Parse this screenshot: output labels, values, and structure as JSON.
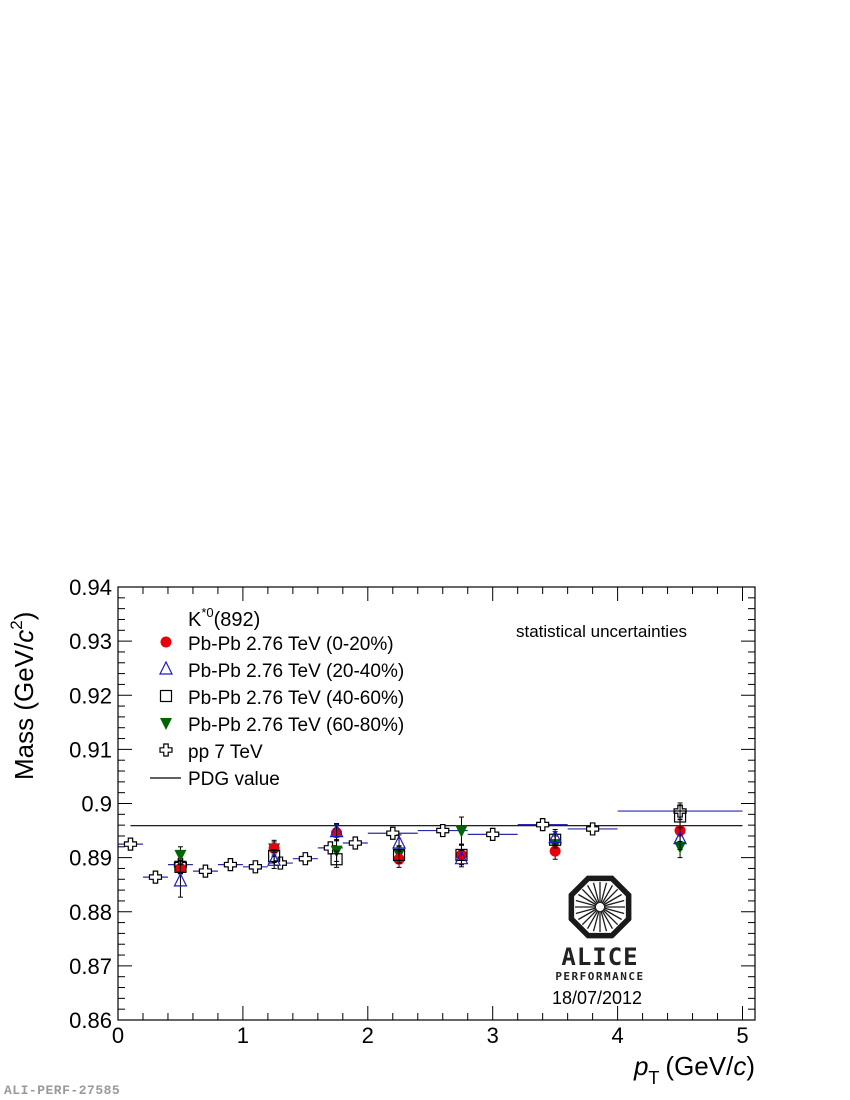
{
  "chart_data": {
    "type": "scatter",
    "title": "K*0(892)",
    "title_main": "K",
    "title_sup": "*0",
    "title_rest": "(892)",
    "annotation": "statistical uncertainties",
    "xlabel_var": "p",
    "xlabel_sub": "T",
    "xlabel_unit_open": "(GeV/",
    "xlabel_unit_c": "c",
    "xlabel_unit_close": ")",
    "ylabel_pre": "Mass (GeV/",
    "ylabel_c": "c",
    "ylabel_sup": "2",
    "ylabel_post": ")",
    "xlim": [
      0,
      5.1
    ],
    "ylim": [
      0.86,
      0.94
    ],
    "xticks": [
      0,
      1,
      2,
      3,
      4,
      5
    ],
    "xtick_labels": [
      "0",
      "1",
      "2",
      "3",
      "4",
      "5"
    ],
    "yticks": [
      0.86,
      0.87,
      0.88,
      0.89,
      0.9,
      0.91,
      0.92,
      0.93,
      0.94
    ],
    "ytick_labels": [
      "0.86",
      "0.87",
      "0.88",
      "0.89",
      "0.9",
      "0.91",
      "0.92",
      "0.93",
      "0.94"
    ],
    "pdg_value": 0.8959,
    "legend_position": "top-left",
    "series": [
      {
        "name": "Pb-Pb 2.76 TeV (0-20%)",
        "marker": "circle",
        "color": "#e8000b",
        "points": [
          {
            "x": 0.5,
            "y": 0.888,
            "err": 0.001
          },
          {
            "x": 1.25,
            "y": 0.8917,
            "err": 0.0012
          },
          {
            "x": 1.75,
            "y": 0.8946,
            "err": 0.0015
          },
          {
            "x": 2.25,
            "y": 0.8897,
            "err": 0.0015
          },
          {
            "x": 2.75,
            "y": 0.8905,
            "err": 0.0018
          },
          {
            "x": 3.5,
            "y": 0.8912,
            "err": 0.0015
          },
          {
            "x": 4.5,
            "y": 0.895,
            "err": 0.002
          }
        ]
      },
      {
        "name": "Pb-Pb 2.76 TeV (20-40%)",
        "marker": "triangle-up-open",
        "color": "#1a1acc",
        "points": [
          {
            "x": 0.5,
            "y": 0.8857,
            "err": 0.003
          },
          {
            "x": 1.25,
            "y": 0.8895,
            "err": 0.0015
          },
          {
            "x": 1.75,
            "y": 0.8948,
            "err": 0.0015
          },
          {
            "x": 2.25,
            "y": 0.8927,
            "err": 0.0015
          },
          {
            "x": 2.75,
            "y": 0.8898,
            "err": 0.0015
          },
          {
            "x": 3.5,
            "y": 0.8937,
            "err": 0.0015
          },
          {
            "x": 4.5,
            "y": 0.8935,
            "err": 0.002
          }
        ]
      },
      {
        "name": "Pb-Pb 2.76 TeV (40-60%)",
        "marker": "square-open",
        "color": "#000000",
        "points": [
          {
            "x": 0.5,
            "y": 0.8883,
            "err": 0.0012
          },
          {
            "x": 1.25,
            "y": 0.8903,
            "err": 0.0012
          },
          {
            "x": 1.75,
            "y": 0.8897,
            "err": 0.0015
          },
          {
            "x": 2.25,
            "y": 0.8905,
            "err": 0.0015
          },
          {
            "x": 2.75,
            "y": 0.8905,
            "err": 0.0018
          },
          {
            "x": 3.5,
            "y": 0.8933,
            "err": 0.0015
          },
          {
            "x": 4.5,
            "y": 0.8976,
            "err": 0.002
          }
        ]
      },
      {
        "name": "Pb-Pb 2.76 TeV (60-80%)",
        "marker": "triangle-down",
        "color": "#006400",
        "points": [
          {
            "x": 0.5,
            "y": 0.8905,
            "err": 0.0015
          },
          {
            "x": 1.25,
            "y": 0.8917,
            "err": 0.0015
          },
          {
            "x": 1.75,
            "y": 0.8913,
            "err": 0.002
          },
          {
            "x": 2.25,
            "y": 0.8907,
            "err": 0.0015
          },
          {
            "x": 2.75,
            "y": 0.895,
            "err": 0.0025
          },
          {
            "x": 3.5,
            "y": 0.8925,
            "err": 0.0015
          },
          {
            "x": 4.5,
            "y": 0.892,
            "err": 0.002
          }
        ]
      },
      {
        "name": "pp 7 TeV",
        "marker": "cross-open",
        "color": "#000000",
        "points": [
          {
            "x": 0.1,
            "y": 0.8925,
            "xerr": 0.1,
            "err": 0.0008
          },
          {
            "x": 0.3,
            "y": 0.8864,
            "xerr": 0.1,
            "err": 0.0005
          },
          {
            "x": 0.5,
            "y": 0.8887,
            "xerr": 0.1,
            "err": 0.0005
          },
          {
            "x": 0.7,
            "y": 0.8875,
            "xerr": 0.1,
            "err": 0.0005
          },
          {
            "x": 0.9,
            "y": 0.8887,
            "xerr": 0.1,
            "err": 0.0005
          },
          {
            "x": 1.1,
            "y": 0.8883,
            "xerr": 0.1,
            "err": 0.0005
          },
          {
            "x": 1.3,
            "y": 0.889,
            "xerr": 0.1,
            "err": 0.0005
          },
          {
            "x": 1.5,
            "y": 0.8898,
            "xerr": 0.1,
            "err": 0.0005
          },
          {
            "x": 1.7,
            "y": 0.8918,
            "xerr": 0.1,
            "err": 0.0005
          },
          {
            "x": 1.9,
            "y": 0.8927,
            "xerr": 0.1,
            "err": 0.0005
          },
          {
            "x": 2.2,
            "y": 0.8945,
            "xerr": 0.2,
            "err": 0.0005
          },
          {
            "x": 2.6,
            "y": 0.895,
            "xerr": 0.2,
            "err": 0.0005
          },
          {
            "x": 3.0,
            "y": 0.8943,
            "xerr": 0.2,
            "err": 0.0005
          },
          {
            "x": 3.4,
            "y": 0.8961,
            "xerr": 0.2,
            "err": 0.001
          },
          {
            "x": 3.8,
            "y": 0.8953,
            "xerr": 0.2,
            "err": 0.001
          },
          {
            "x": 4.5,
            "y": 0.8986,
            "xerr": 0.5,
            "err": 0.0015
          }
        ]
      }
    ],
    "pdg_legend": "PDG value"
  },
  "logo": {
    "name": "ALICE",
    "subtitle": "PERFORMANCE",
    "date": "18/07/2012"
  },
  "footer": {
    "figure_id": "ALI-PERF-27585"
  }
}
